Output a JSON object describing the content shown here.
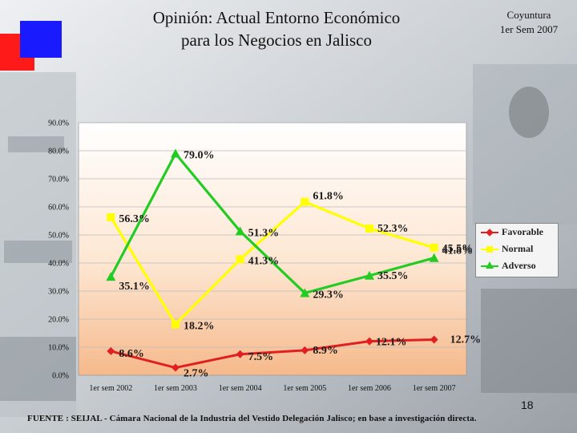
{
  "header": {
    "title_line1": "Opinión: Actual Entorno Económico",
    "title_line2": "para los Negocios en Jalisco",
    "coyuntura_line1": "Coyuntura",
    "coyuntura_line2": "1er Sem 2007"
  },
  "colors": {
    "favorable": "#e02020",
    "normal": "#ffff00",
    "adverso": "#22cc22",
    "square_blue": "#1a1aff",
    "square_red": "#ff1a1a"
  },
  "chart_data": {
    "type": "line",
    "title": "",
    "xlabel": "",
    "ylabel": "",
    "ylim": [
      0,
      90
    ],
    "yticks": [
      "0.0%",
      "10.0%",
      "20.0%",
      "30.0%",
      "40.0%",
      "50.0%",
      "60.0%",
      "70.0%",
      "80.0%",
      "90.0%"
    ],
    "categories": [
      "1er sem 2002",
      "1er sem 2003",
      "1er sem 2004",
      "1er sem 2005",
      "1er sem 2006",
      "1er sem 2007"
    ],
    "legend_position": "right",
    "series": [
      {
        "name": "Favorable",
        "values": [
          8.6,
          2.7,
          7.5,
          8.9,
          12.1,
          12.7
        ],
        "labels": [
          "8.6%",
          "2.7%",
          "7.5%",
          "8.9%",
          "12.1%",
          "12.7%"
        ]
      },
      {
        "name": "Normal",
        "values": [
          56.3,
          18.2,
          41.3,
          61.8,
          52.3,
          45.5
        ],
        "labels": [
          "56.3%",
          "18.2%",
          "41.3%",
          "61.8%",
          "52.3%",
          "45.5%"
        ]
      },
      {
        "name": "Adverso",
        "values": [
          35.1,
          79.0,
          51.3,
          29.3,
          35.5,
          41.8
        ],
        "labels": [
          "35.1%",
          "79.0%",
          "51.3%",
          "29.3%",
          "35.5%",
          "41.8%"
        ]
      }
    ]
  },
  "footer": {
    "page_number": "18",
    "source": "FUENTE :  SEIJAL - Cámara Nacional de la Industria del Vestido Delegación Jalisco;  en base a investigación directa."
  }
}
